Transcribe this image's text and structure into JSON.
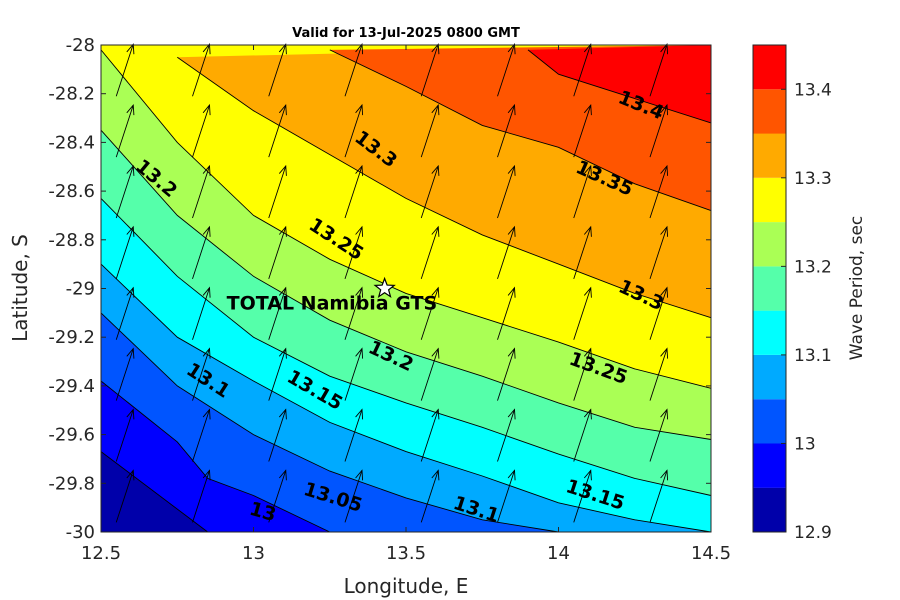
{
  "chart_data": {
    "type": "contour",
    "title": "Valid for 13-Jul-2025 0800 GMT",
    "xlabel": "Longitude, E",
    "ylabel": "Latitude, S",
    "colorbar_label": "Wave Period, sec",
    "xlim": [
      12.5,
      14.5
    ],
    "ylim": [
      -30,
      -28
    ],
    "x_ticks": [
      "12.5",
      "13",
      "13.5",
      "14",
      "14.5"
    ],
    "y_ticks": [
      "-28",
      "-28.2",
      "-28.4",
      "-28.6",
      "-28.8",
      "-29",
      "-29.2",
      "-29.4",
      "-29.6",
      "-29.8",
      "-30"
    ],
    "colorbar_ticks": [
      "12.9",
      "13",
      "13.1",
      "13.2",
      "13.3",
      "13.4"
    ],
    "colorbar_range": [
      12.9,
      13.45
    ],
    "levels": [
      12.9,
      12.95,
      13.0,
      13.05,
      13.1,
      13.15,
      13.2,
      13.25,
      13.3,
      13.35,
      13.4,
      13.45
    ],
    "level_colors": [
      "#0000aa",
      "#0000ff",
      "#0055ff",
      "#00aaff",
      "#00ffff",
      "#55ffaa",
      "#aaff55",
      "#ffff00",
      "#ffaa00",
      "#ff5500",
      "#ff0000"
    ],
    "contour_lines": [
      {
        "level": 12.95,
        "label": "",
        "points": [
          [
            12.5,
            -29.67
          ],
          [
            12.85,
            -30.0
          ]
        ]
      },
      {
        "level": 13.0,
        "label": "13",
        "points": [
          [
            12.5,
            -29.38
          ],
          [
            12.75,
            -29.63
          ],
          [
            12.85,
            -29.78
          ],
          [
            13.0,
            -29.85
          ],
          [
            13.25,
            -30.0
          ]
        ]
      },
      {
        "level": 13.05,
        "label": "13.05",
        "points": [
          [
            12.5,
            -29.1
          ],
          [
            12.75,
            -29.4
          ],
          [
            13.0,
            -29.6
          ],
          [
            13.25,
            -29.75
          ],
          [
            13.5,
            -29.86
          ],
          [
            13.75,
            -29.95
          ],
          [
            14.0,
            -30.0
          ]
        ]
      },
      {
        "level": 13.1,
        "label": "13.1",
        "points": [
          [
            12.5,
            -28.9
          ],
          [
            12.75,
            -29.2
          ],
          [
            13.0,
            -29.38
          ],
          [
            13.25,
            -29.55
          ],
          [
            13.5,
            -29.67
          ],
          [
            13.75,
            -29.77
          ],
          [
            14.0,
            -29.88
          ],
          [
            14.25,
            -29.95
          ],
          [
            14.5,
            -30.0
          ]
        ]
      },
      {
        "level": 13.15,
        "label": "13.15",
        "points": [
          [
            12.5,
            -28.63
          ],
          [
            12.75,
            -28.95
          ],
          [
            13.0,
            -29.2
          ],
          [
            13.25,
            -29.36
          ],
          [
            13.5,
            -29.47
          ],
          [
            13.75,
            -29.57
          ],
          [
            14.0,
            -29.68
          ],
          [
            14.25,
            -29.78
          ],
          [
            14.5,
            -29.85
          ]
        ]
      },
      {
        "level": 13.2,
        "label": "13.2",
        "points": [
          [
            12.5,
            -28.35
          ],
          [
            12.75,
            -28.7
          ],
          [
            13.0,
            -28.95
          ],
          [
            13.25,
            -29.13
          ],
          [
            13.5,
            -29.26
          ],
          [
            13.75,
            -29.36
          ],
          [
            14.0,
            -29.47
          ],
          [
            14.25,
            -29.57
          ],
          [
            14.5,
            -29.62
          ]
        ]
      },
      {
        "level": 13.25,
        "label": "13.25",
        "points": [
          [
            12.5,
            -28.02
          ],
          [
            12.75,
            -28.4
          ],
          [
            13.0,
            -28.7
          ],
          [
            13.25,
            -28.88
          ],
          [
            13.5,
            -29.02
          ],
          [
            13.75,
            -29.12
          ],
          [
            14.0,
            -29.22
          ],
          [
            14.25,
            -29.33
          ],
          [
            14.5,
            -29.41
          ]
        ]
      },
      {
        "level": 13.3,
        "label": "13.3",
        "points": [
          [
            12.75,
            -28.05
          ],
          [
            13.0,
            -28.27
          ],
          [
            13.25,
            -28.45
          ],
          [
            13.5,
            -28.63
          ],
          [
            13.75,
            -28.78
          ],
          [
            14.0,
            -28.9
          ],
          [
            14.25,
            -29.02
          ],
          [
            14.5,
            -29.12
          ]
        ]
      },
      {
        "level": 13.35,
        "label": "13.35",
        "points": [
          [
            13.25,
            -28.02
          ],
          [
            13.5,
            -28.17
          ],
          [
            13.75,
            -28.33
          ],
          [
            14.0,
            -28.42
          ],
          [
            14.25,
            -28.57
          ],
          [
            14.5,
            -28.68
          ]
        ]
      },
      {
        "level": 13.4,
        "label": "13.4",
        "points": [
          [
            13.9,
            -28.02
          ],
          [
            14.0,
            -28.12
          ],
          [
            14.25,
            -28.22
          ],
          [
            14.5,
            -28.32
          ]
        ]
      }
    ],
    "contour_labels": [
      {
        "text": "13.4",
        "x": 14.27,
        "y": -28.25,
        "angle": 22
      },
      {
        "text": "13.35",
        "x": 14.15,
        "y": -28.55,
        "angle": 24
      },
      {
        "text": "13.3",
        "x": 13.4,
        "y": -28.43,
        "angle": 37
      },
      {
        "text": "13.3",
        "x": 14.27,
        "y": -29.03,
        "angle": 25
      },
      {
        "text": "13.25",
        "x": 13.27,
        "y": -28.8,
        "angle": 33
      },
      {
        "text": "13.25",
        "x": 14.13,
        "y": -29.33,
        "angle": 20
      },
      {
        "text": "13.2",
        "x": 12.68,
        "y": -28.55,
        "angle": 40
      },
      {
        "text": "13.2",
        "x": 13.45,
        "y": -29.28,
        "angle": 25
      },
      {
        "text": "13.15",
        "x": 13.2,
        "y": -29.42,
        "angle": 30
      },
      {
        "text": "13.15",
        "x": 14.12,
        "y": -29.85,
        "angle": 18
      },
      {
        "text": "13.1",
        "x": 12.85,
        "y": -29.38,
        "angle": 33
      },
      {
        "text": "13.1",
        "x": 13.73,
        "y": -29.91,
        "angle": 18
      },
      {
        "text": "13.05",
        "x": 13.26,
        "y": -29.86,
        "angle": 17
      },
      {
        "text": "13",
        "x": 13.03,
        "y": -29.92,
        "angle": 16
      }
    ],
    "vector_field": {
      "x": [
        12.55,
        12.8,
        13.05,
        13.3,
        13.55,
        13.8,
        14.05,
        14.3
      ],
      "y": [
        -28.12,
        -28.37,
        -28.62,
        -28.87,
        -29.12,
        -29.37,
        -29.62,
        -29.87
      ],
      "direction_note": "arrows point north-northeast"
    },
    "marker": {
      "label": "TOTAL Namibia GTS",
      "x": 13.43,
      "y": -29.0,
      "symbol": "star"
    }
  }
}
